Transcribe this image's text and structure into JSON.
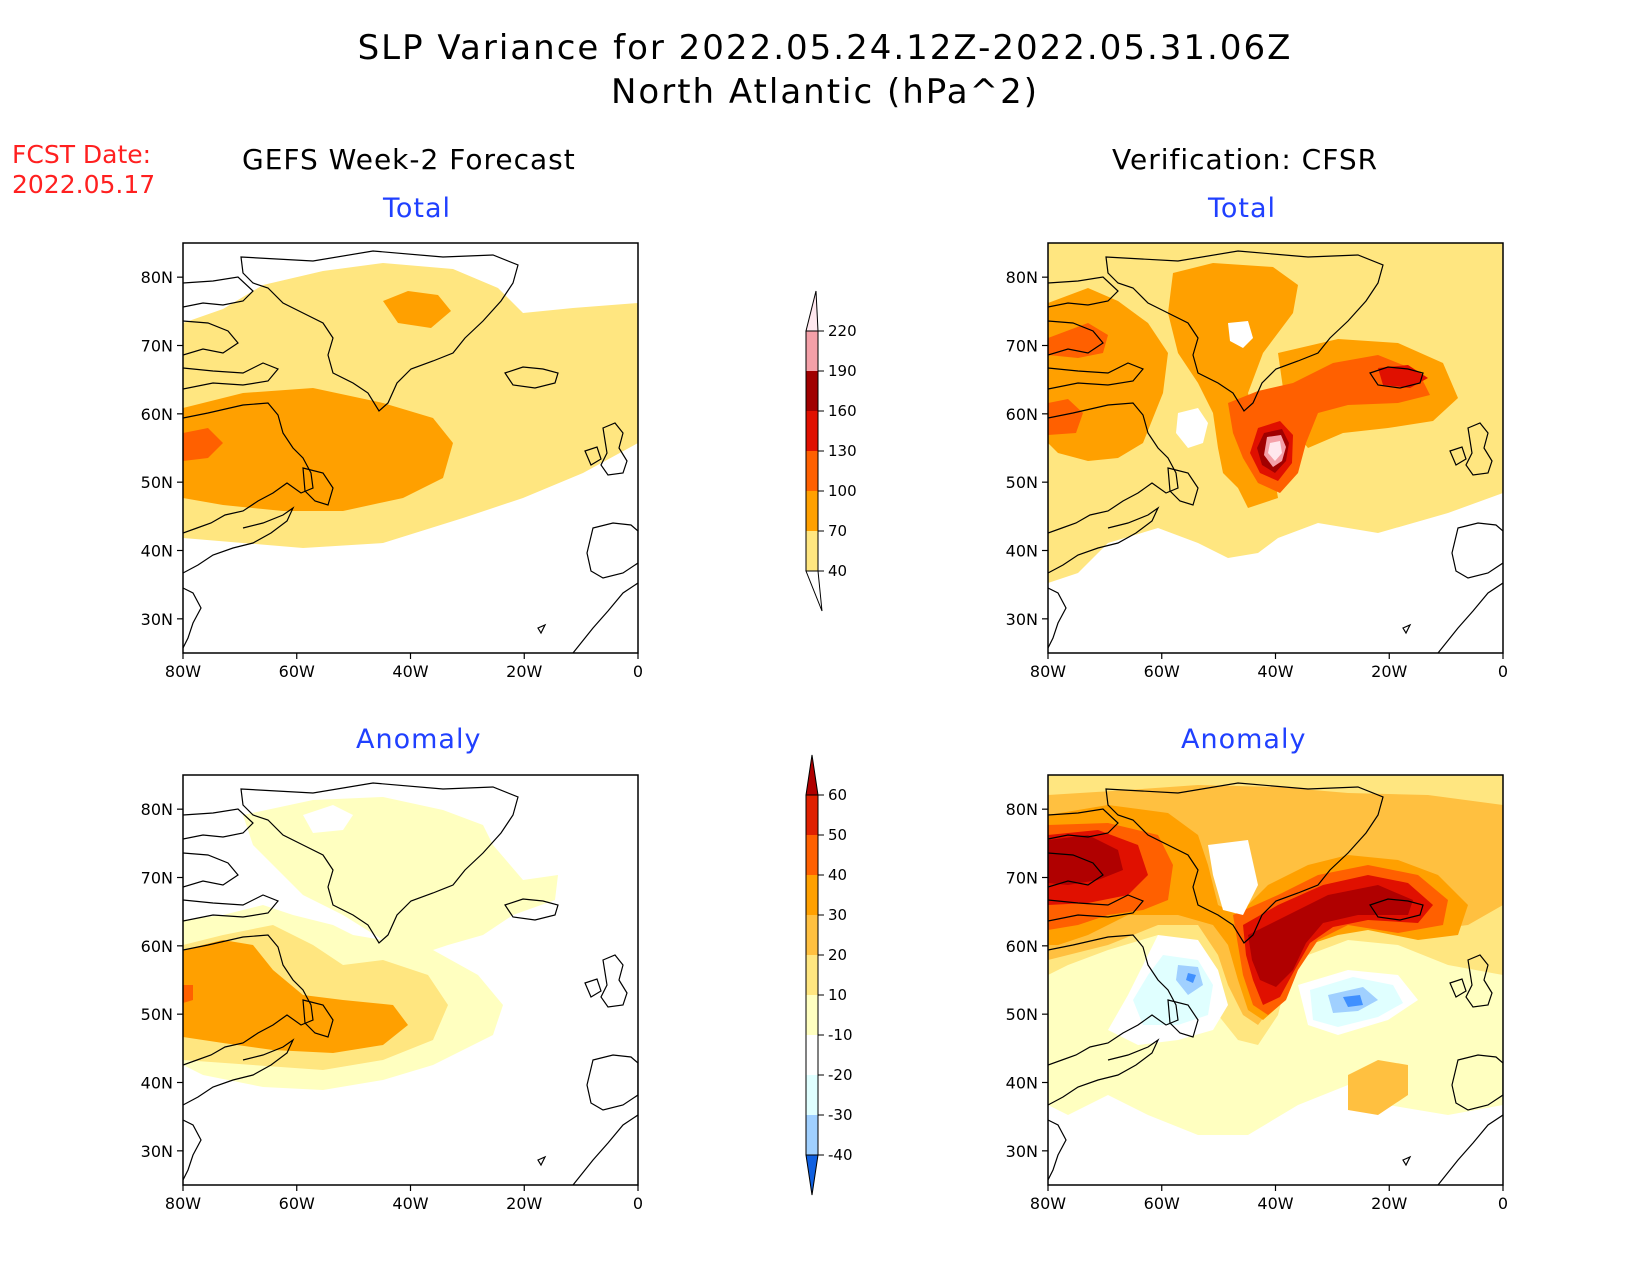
{
  "header": {
    "title_line1": "SLP Variance for 2022.05.24.12Z-2022.05.31.06Z",
    "title_line2": "North Atlantic (hPa^2)",
    "fcst_date_label": "FCST Date:",
    "fcst_date_value": "2022.05.17"
  },
  "columns": {
    "forecast": "GEFS Week-2 Forecast",
    "verification": "Verification: CFSR"
  },
  "panels": {
    "total": "Total",
    "anomaly": "Anomaly"
  },
  "axes": {
    "lat_ticks": [
      "30N",
      "40N",
      "50N",
      "60N",
      "70N",
      "80N"
    ],
    "lon_ticks": [
      "80W",
      "60W",
      "40W",
      "20W",
      "0"
    ],
    "lat_range": [
      25,
      85
    ],
    "lon_range": [
      -80,
      0
    ]
  },
  "colorbars": {
    "total": {
      "levels": [
        "40",
        "70",
        "100",
        "130",
        "160",
        "190",
        "220"
      ],
      "colors": [
        "#ffe680",
        "#ffa000",
        "#ff6000",
        "#e01000",
        "#a00000",
        "#f4a0a8",
        "#ffe8ee"
      ]
    },
    "anomaly": {
      "levels": [
        "60",
        "50",
        "40",
        "30",
        "20",
        "10",
        "-10",
        "-20",
        "-30",
        "-40"
      ],
      "colors": [
        "#b00000",
        "#e02000",
        "#ff6000",
        "#ffa000",
        "#ffc040",
        "#ffe680",
        "#ffffc0",
        "#ffffff",
        "#e0ffff",
        "#a0d0ff",
        "#4090ff",
        "#1060e0"
      ]
    }
  }
}
